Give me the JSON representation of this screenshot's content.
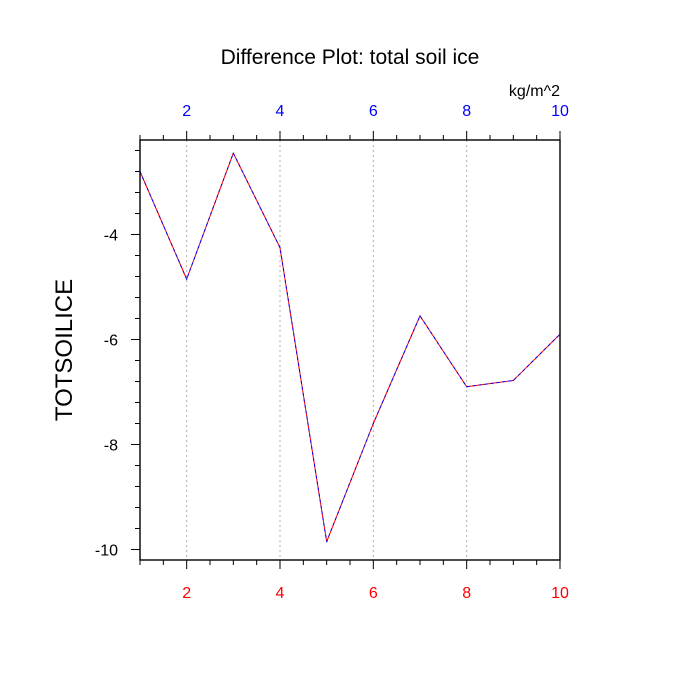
{
  "chart_data": {
    "type": "line",
    "title": "Difference Plot: total soil ice",
    "ylabel": "TOTSOILICE",
    "units": "kg/m^2",
    "xlim": [
      1,
      10
    ],
    "ylim": [
      -10.2,
      -2.2
    ],
    "x_ticks": [
      2,
      4,
      6,
      8,
      10
    ],
    "y_ticks": [
      -10,
      -8,
      -6,
      -4
    ],
    "grid": "vertical dotted at major x ticks",
    "colors": {
      "bottom_tick_labels": "#ff0000",
      "top_tick_labels": "#0000ff",
      "line_primary": "#ff0000",
      "line_dash": "#0000ff",
      "grid": "#b0b0b0",
      "axes": "#000000"
    },
    "series": [
      {
        "x": [
          1,
          2,
          3,
          4,
          5,
          6,
          7,
          8,
          9,
          10
        ],
        "values": [
          -2.8,
          -4.85,
          -2.45,
          -4.25,
          -9.85,
          -7.6,
          -5.55,
          -6.9,
          -6.78,
          -5.9
        ]
      }
    ]
  }
}
